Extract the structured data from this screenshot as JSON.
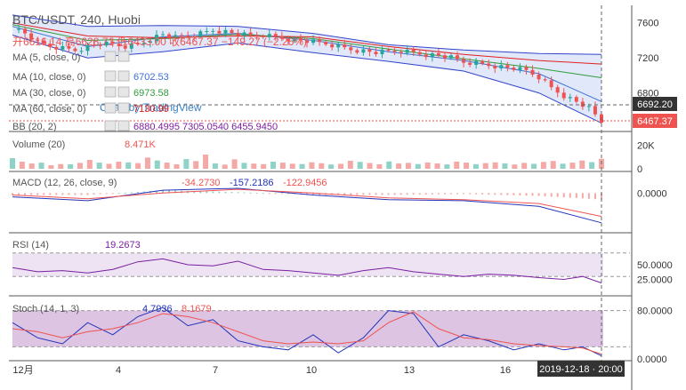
{
  "header": {
    "title": "BTC/USDT, 240, Huobi",
    "ohlc_text": "开6616.14 高6628.71 低6433.00 收6467.37 −149.27 (−2.26%)",
    "watermark": "Chart by TradingView"
  },
  "indicators": [
    {
      "label": "MA (5, close, 0)",
      "value": "",
      "color": "#1a2f8a"
    },
    {
      "label": "MA (10, close, 0)",
      "value": "6702.53",
      "color": "#3b6fd4"
    },
    {
      "label": "MA (30, close, 0)",
      "value": "6973.58",
      "color": "#2e9b3a"
    },
    {
      "label": "MA (60, close, 0)",
      "value": "7130.99",
      "color": "#e02020"
    },
    {
      "label": "BB (20, 2)",
      "value": "6880.4995  7305.0540  6455.9450",
      "color": "#7b1fa2"
    }
  ],
  "time_axis": {
    "labels": [
      "12月",
      "4",
      "7",
      "10",
      "13",
      "16"
    ],
    "crosshair_label": "2019-12-18 · 20:00"
  },
  "colors": {
    "up": "#26a69a",
    "down": "#ef5350",
    "bb_fill": "#d9e2f7",
    "rsi_band": "#ede3f2",
    "stoch_band": "#dcc4e2",
    "price_tag": "#ef5350",
    "crosshair_tag": "#333333"
  },
  "chart_data": [
    {
      "type": "line",
      "name": "price",
      "title": "BTC/USDT, 240, Huobi",
      "ylim": [
        6380,
        7780
      ],
      "y_ticks": [
        7600,
        7200,
        6800
      ],
      "x_dates": [
        "2019-12-01",
        "2019-12-04",
        "2019-12-07",
        "2019-12-10",
        "2019-12-13",
        "2019-12-16",
        "2019-12-18"
      ],
      "close_points": [
        [
          0,
          7550
        ],
        [
          4,
          7480
        ],
        [
          8,
          7370
        ],
        [
          12,
          7330
        ],
        [
          16,
          7310
        ],
        [
          20,
          7290
        ],
        [
          24,
          7330
        ],
        [
          28,
          7360
        ],
        [
          32,
          7350
        ],
        [
          36,
          7330
        ],
        [
          40,
          7350
        ],
        [
          44,
          7420
        ],
        [
          48,
          7470
        ],
        [
          52,
          7430
        ],
        [
          56,
          7450
        ],
        [
          60,
          7480
        ],
        [
          64,
          7520
        ],
        [
          68,
          7500
        ],
        [
          72,
          7470
        ],
        [
          76,
          7450
        ],
        [
          80,
          7460
        ],
        [
          84,
          7440
        ],
        [
          88,
          7420
        ],
        [
          92,
          7400
        ],
        [
          96,
          7380
        ],
        [
          100,
          7360
        ],
        [
          104,
          7330
        ],
        [
          108,
          7300
        ],
        [
          112,
          7280
        ],
        [
          116,
          7260
        ],
        [
          120,
          7270
        ],
        [
          124,
          7280
        ],
        [
          128,
          7260
        ],
        [
          132,
          7240
        ],
        [
          136,
          7230
        ],
        [
          140,
          7200
        ],
        [
          144,
          7150
        ],
        [
          148,
          7140
        ],
        [
          152,
          7120
        ],
        [
          156,
          7100
        ],
        [
          160,
          7080
        ],
        [
          164,
          7050
        ],
        [
          168,
          6980
        ],
        [
          172,
          6860
        ],
        [
          176,
          6770
        ],
        [
          180,
          6700
        ],
        [
          184,
          6620
        ],
        [
          188,
          6467
        ]
      ],
      "last_price": "6467.37",
      "crosshair_price": "6692.20",
      "bb_upper": [
        [
          0,
          7690
        ],
        [
          24,
          7560
        ],
        [
          48,
          7570
        ],
        [
          72,
          7560
        ],
        [
          96,
          7480
        ],
        [
          120,
          7350
        ],
        [
          144,
          7290
        ],
        [
          168,
          7250
        ],
        [
          188,
          7240
        ]
      ],
      "bb_lower": [
        [
          0,
          7460
        ],
        [
          24,
          7200
        ],
        [
          48,
          7270
        ],
        [
          72,
          7370
        ],
        [
          96,
          7260
        ],
        [
          120,
          7160
        ],
        [
          144,
          7050
        ],
        [
          168,
          6800
        ],
        [
          188,
          6455
        ]
      ],
      "ma_lines": [
        {
          "name": "MA 10",
          "color": "#3b6fd4",
          "points": [
            [
              0,
              7560
            ],
            [
              24,
              7330
            ],
            [
              48,
              7440
            ],
            [
              72,
              7480
            ],
            [
              96,
              7400
            ],
            [
              120,
              7270
            ],
            [
              144,
              7170
            ],
            [
              168,
              7020
            ],
            [
              188,
              6702
            ]
          ]
        },
        {
          "name": "MA 30",
          "color": "#2e9b3a",
          "points": [
            [
              0,
              7580
            ],
            [
              24,
              7400
            ],
            [
              48,
              7420
            ],
            [
              72,
              7470
            ],
            [
              96,
              7420
            ],
            [
              120,
              7300
            ],
            [
              144,
              7190
            ],
            [
              168,
              7080
            ],
            [
              188,
              6973
            ]
          ]
        },
        {
          "name": "MA 60",
          "color": "#e02020",
          "points": [
            [
              0,
              7600
            ],
            [
              24,
              7450
            ],
            [
              48,
              7430
            ],
            [
              72,
              7450
            ],
            [
              96,
              7440
            ],
            [
              120,
              7330
            ],
            [
              144,
              7240
            ],
            [
              168,
              7170
            ],
            [
              188,
              7130
            ]
          ]
        }
      ]
    },
    {
      "type": "bar",
      "name": "Volume (20)",
      "value_label": "8.471K",
      "y_ticks": [
        "20K",
        "0"
      ],
      "ylim": [
        0,
        30000
      ],
      "values": [
        9000,
        6000,
        4500,
        5200,
        3000,
        4000,
        3800,
        5000,
        7500,
        5200,
        4200,
        6000,
        5400,
        4800,
        9500,
        7000,
        5200,
        3800,
        8200,
        6500,
        12000,
        4600,
        3500,
        8000,
        5000,
        4400,
        3900,
        6000,
        5200,
        4300,
        4000,
        5500,
        4700,
        3600,
        4200,
        6800,
        5800,
        4900,
        3800,
        6200,
        4500,
        5000,
        4000,
        5300,
        4600,
        3700,
        6100,
        5200,
        3900,
        4800,
        5400,
        4600,
        3600,
        5000,
        4200,
        5800,
        6600,
        4300,
        5200,
        7000,
        5600,
        8471
      ]
    },
    {
      "type": "line",
      "name": "MACD (12, 26, close, 9)",
      "values_text": [
        "-34.2730",
        "-157.2186",
        "-122.9456"
      ],
      "y_ticks": [
        "0.0000"
      ],
      "ylim": [
        -200,
        100
      ],
      "macd": [
        [
          0,
          -20
        ],
        [
          24,
          -40
        ],
        [
          48,
          15
        ],
        [
          72,
          25
        ],
        [
          96,
          -10
        ],
        [
          120,
          -35
        ],
        [
          144,
          -40
        ],
        [
          168,
          -70
        ],
        [
          188,
          -157
        ]
      ],
      "signal": [
        [
          0,
          -10
        ],
        [
          24,
          -30
        ],
        [
          48,
          0
        ],
        [
          72,
          20
        ],
        [
          96,
          0
        ],
        [
          120,
          -25
        ],
        [
          144,
          -35
        ],
        [
          168,
          -55
        ],
        [
          188,
          -123
        ]
      ]
    },
    {
      "type": "line",
      "name": "RSI (14)",
      "value_label": "19.2673",
      "y_ticks": [
        "50.0000",
        "25.0000"
      ],
      "ylim": [
        0,
        100
      ],
      "band": [
        30,
        70
      ],
      "points": [
        [
          0,
          45
        ],
        [
          8,
          38
        ],
        [
          16,
          40
        ],
        [
          24,
          36
        ],
        [
          32,
          42
        ],
        [
          40,
          55
        ],
        [
          48,
          60
        ],
        [
          56,
          50
        ],
        [
          64,
          48
        ],
        [
          72,
          56
        ],
        [
          80,
          42
        ],
        [
          88,
          40
        ],
        [
          96,
          36
        ],
        [
          104,
          32
        ],
        [
          112,
          40
        ],
        [
          120,
          45
        ],
        [
          128,
          38
        ],
        [
          136,
          34
        ],
        [
          144,
          30
        ],
        [
          152,
          34
        ],
        [
          160,
          32
        ],
        [
          168,
          28
        ],
        [
          176,
          25
        ],
        [
          182,
          30
        ],
        [
          188,
          19
        ]
      ]
    },
    {
      "type": "line",
      "name": "Stoch (14, 1, 3)",
      "values_text": [
        "4.7936",
        "8.1679"
      ],
      "y_ticks": [
        "80.0000",
        "0.0000"
      ],
      "ylim": [
        0,
        100
      ],
      "band": [
        20,
        80
      ],
      "k": [
        [
          0,
          60
        ],
        [
          8,
          35
        ],
        [
          16,
          25
        ],
        [
          24,
          60
        ],
        [
          32,
          40
        ],
        [
          40,
          70
        ],
        [
          48,
          85
        ],
        [
          56,
          55
        ],
        [
          64,
          65
        ],
        [
          72,
          30
        ],
        [
          80,
          20
        ],
        [
          88,
          15
        ],
        [
          96,
          40
        ],
        [
          104,
          10
        ],
        [
          112,
          35
        ],
        [
          120,
          80
        ],
        [
          128,
          75
        ],
        [
          136,
          20
        ],
        [
          144,
          40
        ],
        [
          152,
          30
        ],
        [
          160,
          15
        ],
        [
          168,
          25
        ],
        [
          176,
          15
        ],
        [
          182,
          20
        ],
        [
          188,
          5
        ]
      ],
      "d": [
        [
          0,
          50
        ],
        [
          8,
          45
        ],
        [
          16,
          35
        ],
        [
          24,
          45
        ],
        [
          32,
          50
        ],
        [
          40,
          60
        ],
        [
          48,
          75
        ],
        [
          56,
          70
        ],
        [
          64,
          60
        ],
        [
          72,
          45
        ],
        [
          80,
          30
        ],
        [
          88,
          25
        ],
        [
          96,
          28
        ],
        [
          104,
          25
        ],
        [
          112,
          30
        ],
        [
          120,
          60
        ],
        [
          128,
          78
        ],
        [
          136,
          50
        ],
        [
          144,
          35
        ],
        [
          152,
          32
        ],
        [
          160,
          25
        ],
        [
          168,
          22
        ],
        [
          176,
          20
        ],
        [
          182,
          18
        ],
        [
          188,
          8
        ]
      ]
    }
  ]
}
